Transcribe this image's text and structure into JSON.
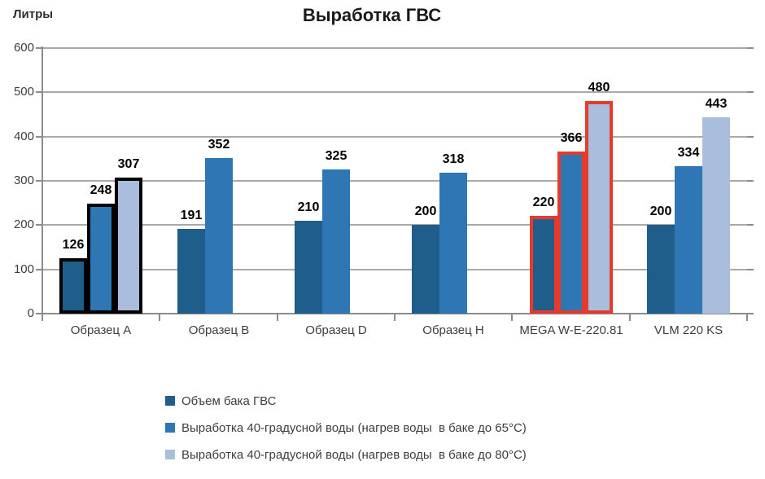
{
  "chart_data": {
    "type": "bar",
    "title": "Выработка ГВС",
    "ylabel": "Литры",
    "ylim": [
      0,
      600
    ],
    "ytick_step": 100,
    "grid": true,
    "legend_position": "bottom-left",
    "categories": [
      "Образец A",
      "Образец B",
      "Образец D",
      "Образец H",
      "MEGA W-E-220.81",
      "VLM 220 KS"
    ],
    "series": [
      {
        "name": "Объем бака ГВС",
        "color": "#1F5D8A",
        "values": [
          126,
          191,
          210,
          200,
          220,
          200
        ]
      },
      {
        "name": "Выработка 40-градусной воды (нагрев воды  в баке до 65°C)",
        "color": "#2E76B4",
        "values": [
          248,
          352,
          325,
          318,
          366,
          334
        ]
      },
      {
        "name": "Выработка 40-градусной воды (нагрев воды  в баке до 80°C)",
        "color": "#A8BEDC",
        "values": [
          307,
          null,
          null,
          null,
          480,
          443
        ]
      }
    ],
    "highlights": [
      {
        "category_index": 0,
        "outline_color": "#000000"
      },
      {
        "category_index": 4,
        "outline_color": "#E53A2C"
      }
    ]
  }
}
